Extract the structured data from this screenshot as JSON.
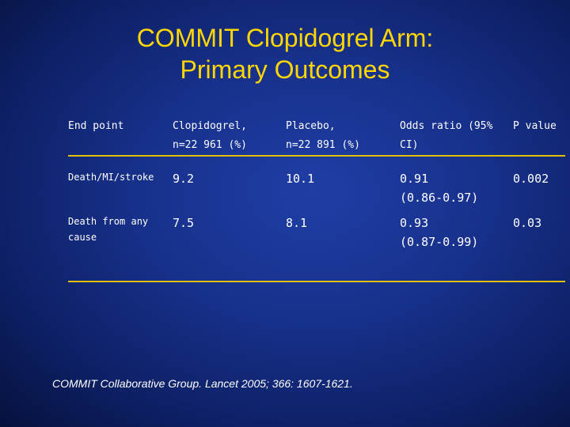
{
  "title": {
    "line1": "COMMIT Clopidogrel Arm:",
    "line2": "Primary Outcomes"
  },
  "table": {
    "headers": [
      "End point",
      "Clopidogrel,\nn=22 961 (%)",
      "Placebo,\nn=22 891 (%)",
      "Odds ratio (95%\nCI)",
      "P value"
    ],
    "rows": [
      {
        "end_point": "Death/MI/stroke",
        "clopidogrel": "9.2",
        "placebo": "10.1",
        "odds_ratio": "0.91\n(0.86-0.97)",
        "p_value": "0.002"
      },
      {
        "end_point": "Death from any\ncause",
        "clopidogrel": "7.5",
        "placebo": "8.1",
        "odds_ratio": "0.93\n(0.87-0.99)",
        "p_value": "0.03"
      }
    ]
  },
  "footer": "COMMIT Collaborative Group. Lancet 2005; 366: 1607-1621.",
  "colors": {
    "title": "#ffd700",
    "rule": "#e0c000",
    "background": "#17308a",
    "text": "#ffffff"
  }
}
